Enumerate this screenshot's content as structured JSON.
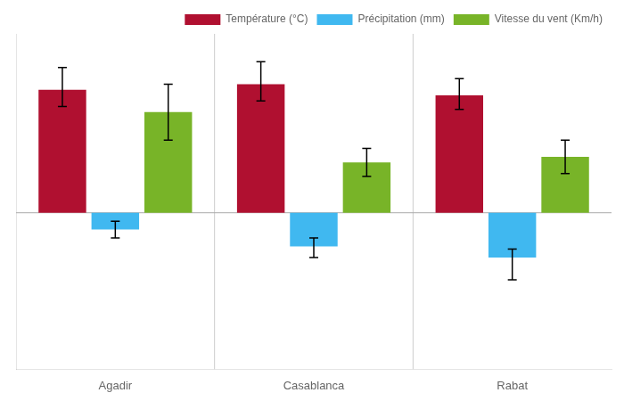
{
  "chart_data": {
    "type": "bar",
    "categories": [
      "Agadir",
      "Casablanca",
      "Rabat"
    ],
    "series": [
      {
        "name": "Température (°C)",
        "color": "#b01030",
        "values": [
          22,
          23,
          21
        ],
        "errors_neg": [
          3,
          3,
          2.5
        ],
        "errors_pos": [
          4,
          4,
          3
        ]
      },
      {
        "name": "Précipitation (mm)",
        "color": "#40b8f0",
        "values": [
          -3,
          -6,
          -8
        ],
        "errors_neg": [
          1.5,
          2,
          4
        ],
        "errors_pos": [
          1.5,
          1.5,
          1.5
        ]
      },
      {
        "name": "Vitesse du vent (Km/h)",
        "color": "#78b428",
        "values": [
          18,
          9,
          10
        ],
        "errors_neg": [
          5,
          2.5,
          3
        ],
        "errors_pos": [
          5,
          2.5,
          3
        ]
      }
    ],
    "ylim": [
      -28,
      32
    ],
    "yticks": [],
    "grid": false,
    "legend": "upper right",
    "tick_labels": "x"
  }
}
